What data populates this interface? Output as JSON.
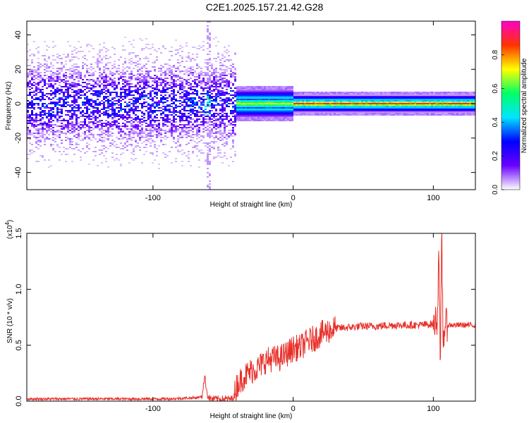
{
  "title": "C2E1.2025.157.21.42.G28",
  "chart_data": [
    {
      "type": "heatmap",
      "xlabel": "Height of straight line (km)",
      "ylabel": "Frequency (Hz)",
      "xlim": [
        -190,
        130
      ],
      "ylim": [
        -50,
        48
      ],
      "x_ticks": [
        -100,
        0,
        100
      ],
      "x_tick_labels": [
        "-100",
        "0",
        "100"
      ],
      "y_ticks": [
        -40,
        -20,
        0,
        20,
        40
      ],
      "y_tick_labels": [
        "-40",
        "-20",
        "0",
        "20",
        "40"
      ],
      "grid": false,
      "colorbar": {
        "label": "Normalized spectral amplitude",
        "range": [
          0,
          1
        ],
        "ticks": [
          0.0,
          0.2,
          0.4,
          0.6,
          0.8
        ],
        "tick_labels": [
          "0.0",
          "0.2",
          "0.4",
          "0.6",
          "0.8"
        ],
        "colormap": [
          "#ffffff",
          "#6a00ff",
          "#0000ff",
          "#00e5ff",
          "#00ff66",
          "#ffff00",
          "#ff3300",
          "#ff00cc"
        ]
      },
      "regions": [
        {
          "x_range": [
            -190,
            -63
          ],
          "spread_hz": 48,
          "core_hz": 10,
          "peak_level": 0.25
        },
        {
          "x_range": [
            -63,
            -58
          ],
          "spread_hz": 48,
          "core_hz": 6,
          "peak_level": 0.5
        },
        {
          "x_range": [
            -58,
            -40
          ],
          "spread_hz": 48,
          "core_hz": 10,
          "peak_level": 0.25
        },
        {
          "x_range": [
            -40,
            0
          ],
          "spread_hz": 8,
          "core_hz": 3,
          "peak_level": 0.75
        },
        {
          "x_range": [
            0,
            130
          ],
          "spread_hz": 5,
          "core_hz": 2,
          "peak_level": 0.95
        }
      ]
    },
    {
      "type": "line",
      "xlabel": "Height of straight line (km)",
      "ylabel": "SNR (10 * v/v)",
      "y_scale_label": "(x10",
      "y_scale_exponent": "4",
      "xlim": [
        -190,
        130
      ],
      "ylim": [
        0,
        1.5
      ],
      "x_ticks": [
        -100,
        0,
        100
      ],
      "x_tick_labels": [
        "-100",
        "0",
        "100"
      ],
      "y_ticks": [
        0.0,
        0.5,
        1.0,
        1.5
      ],
      "y_tick_labels": [
        "0.0",
        "0.5",
        "1.0",
        "1.5"
      ],
      "grid": false,
      "color": "#e8302a",
      "series": [
        {
          "x": [
            -190,
            -170,
            -150,
            -130,
            -110,
            -90,
            -70,
            -65,
            -64,
            -63,
            -62,
            -61,
            -60,
            -58,
            -50,
            -44,
            -42,
            -40,
            -35,
            -30,
            -25,
            -20,
            -15,
            -10,
            -5,
            0,
            5,
            10,
            15,
            20,
            25,
            30,
            40,
            50,
            60,
            70,
            80,
            90,
            100,
            103,
            104,
            105,
            106,
            107,
            108,
            110,
            115,
            120,
            125,
            130
          ],
          "y": [
            0.02,
            0.02,
            0.02,
            0.02,
            0.02,
            0.02,
            0.03,
            0.04,
            0.15,
            0.22,
            0.12,
            0.05,
            0.03,
            0.02,
            0.02,
            0.02,
            0.05,
            0.15,
            0.22,
            0.27,
            0.3,
            0.36,
            0.38,
            0.38,
            0.42,
            0.47,
            0.48,
            0.53,
            0.56,
            0.6,
            0.63,
            0.65,
            0.66,
            0.67,
            0.67,
            0.68,
            0.68,
            0.68,
            0.69,
            0.75,
            1.45,
            0.2,
            1.5,
            0.5,
            0.68,
            0.68,
            0.68,
            0.68,
            0.68,
            0.68
          ]
        }
      ]
    }
  ]
}
